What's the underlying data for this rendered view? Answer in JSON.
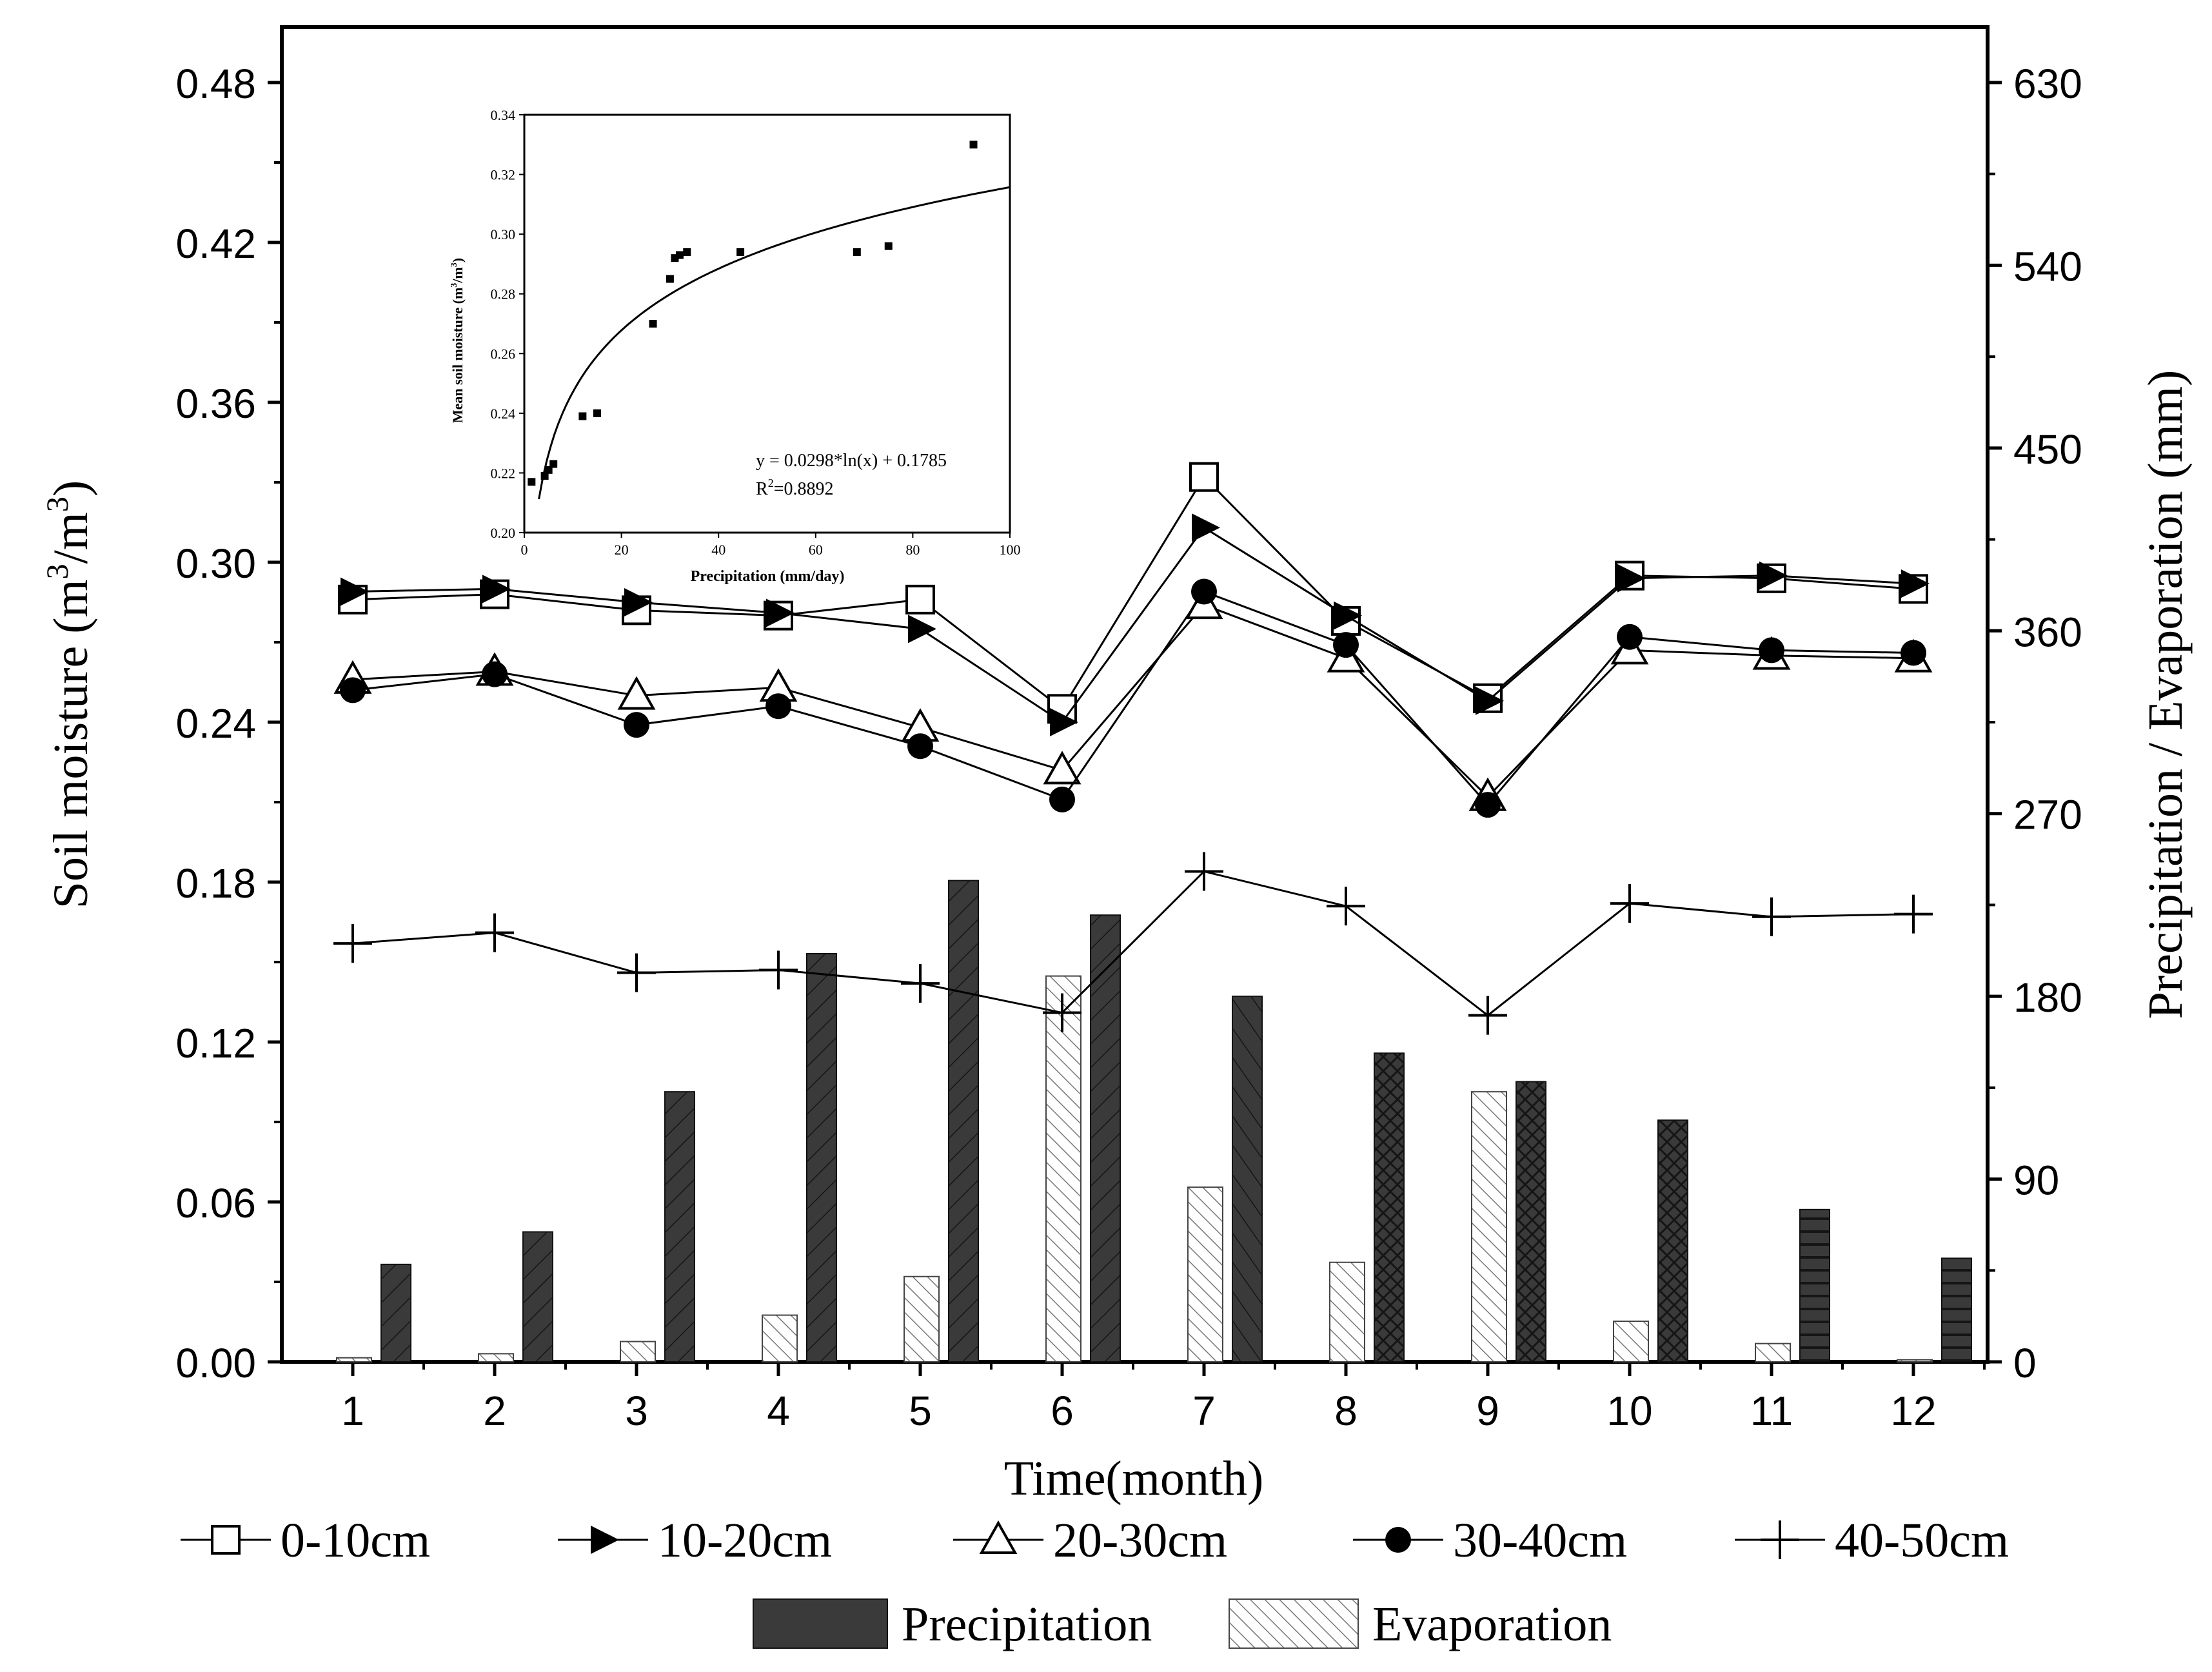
{
  "chart_data": [
    {
      "type": "bar+line",
      "title": "",
      "xlabel": "Time(month)",
      "ylabel_left": "Soil moisture (m",
      "ylabel_left_sup1": "3",
      "ylabel_left_mid": "/m",
      "ylabel_left_sup2": "3",
      "ylabel_left_end": ")",
      "ylabel_right": "Precipitation / Evaporation (mm)",
      "categories": [
        "1",
        "2",
        "3",
        "4",
        "5",
        "6",
        "7",
        "8",
        "9",
        "10",
        "11",
        "12"
      ],
      "x_ticks": [
        "1",
        "2",
        "3",
        "4",
        "5",
        "6",
        "7",
        "8",
        "9",
        "10",
        "11",
        "12"
      ],
      "ylim_left": [
        0,
        0.5
      ],
      "yticks_left": [
        "0.00",
        "0.06",
        "0.12",
        "0.18",
        "0.24",
        "0.30",
        "0.36",
        "0.42",
        "0.48"
      ],
      "ylim_right": [
        0,
        656.25
      ],
      "yticks_right": [
        "0",
        "90",
        "180",
        "270",
        "360",
        "450",
        "540",
        "630"
      ],
      "line_series": [
        {
          "name": "0-10cm",
          "marker": "open-square",
          "values": [
            0.286,
            0.288,
            0.282,
            0.28,
            0.286,
            0.245,
            0.332,
            0.278,
            0.249,
            0.295,
            0.294,
            0.29
          ]
        },
        {
          "name": "10-20cm",
          "marker": "filled-right-triangle",
          "values": [
            0.289,
            0.29,
            0.285,
            0.281,
            0.275,
            0.24,
            0.313,
            0.28,
            0.248,
            0.294,
            0.295,
            0.292
          ]
        },
        {
          "name": "20-30cm",
          "marker": "open-triangle",
          "values": [
            0.256,
            0.259,
            0.25,
            0.253,
            0.238,
            0.222,
            0.284,
            0.264,
            0.212,
            0.267,
            0.265,
            0.264
          ]
        },
        {
          "name": "30-40cm",
          "marker": "filled-circle",
          "values": [
            0.252,
            0.258,
            0.239,
            0.246,
            0.231,
            0.211,
            0.289,
            0.269,
            0.209,
            0.272,
            0.267,
            0.266
          ]
        },
        {
          "name": "40-50cm",
          "marker": "plus",
          "values": [
            0.157,
            0.161,
            0.146,
            0.147,
            0.142,
            0.131,
            0.184,
            0.171,
            0.13,
            0.172,
            0.167,
            0.168
          ]
        }
      ],
      "bar_series": [
        {
          "name": "Precipitation",
          "axis": "right",
          "values": [
            48,
            64,
            133,
            201,
            237,
            220,
            180,
            152,
            138,
            119,
            75,
            51
          ]
        },
        {
          "name": "Evaporation",
          "axis": "right",
          "values": [
            2,
            4,
            10,
            23,
            42,
            190,
            86,
            49,
            133,
            20,
            9,
            1
          ]
        }
      ],
      "legend": {
        "placement": "bottom",
        "entries": [
          "0-10cm",
          "10-20cm",
          "20-30cm",
          "30-40cm",
          "40-50cm",
          "Precipitation",
          "Evaporation"
        ]
      }
    },
    {
      "type": "scatter",
      "title": "",
      "xlabel": "Precipitation (mm/day)",
      "ylabel": "Mean soil moisture (m",
      "ylabel_sup1": "3",
      "ylabel_mid": "/m",
      "ylabel_sup2": "3",
      "ylabel_end": ")",
      "xlim": [
        0,
        100
      ],
      "ylim": [
        0.2,
        0.34
      ],
      "xticks": [
        "0",
        "20",
        "40",
        "60",
        "80",
        "100"
      ],
      "yticks": [
        "0.20",
        "0.22",
        "0.24",
        "0.26",
        "0.28",
        "0.30",
        "0.32",
        "0.34"
      ],
      "points": [
        [
          1.5,
          0.217
        ],
        [
          4.2,
          0.219
        ],
        [
          5.0,
          0.221
        ],
        [
          6.0,
          0.223
        ],
        [
          12,
          0.239
        ],
        [
          15,
          0.24
        ],
        [
          26.5,
          0.27
        ],
        [
          30,
          0.285
        ],
        [
          31,
          0.292
        ],
        [
          32,
          0.293
        ],
        [
          33.5,
          0.294
        ],
        [
          44.5,
          0.294
        ],
        [
          68.5,
          0.294
        ],
        [
          75,
          0.296
        ],
        [
          92.5,
          0.33
        ]
      ],
      "fit": {
        "a": 0.0298,
        "b": 0.1785,
        "x_from": 3,
        "x_to": 100
      },
      "equation": "y = 0.0298*ln(x) + 0.1785",
      "r2_prefix": "R",
      "r2_sup": "2",
      "r2_value": "=0.8892"
    }
  ]
}
